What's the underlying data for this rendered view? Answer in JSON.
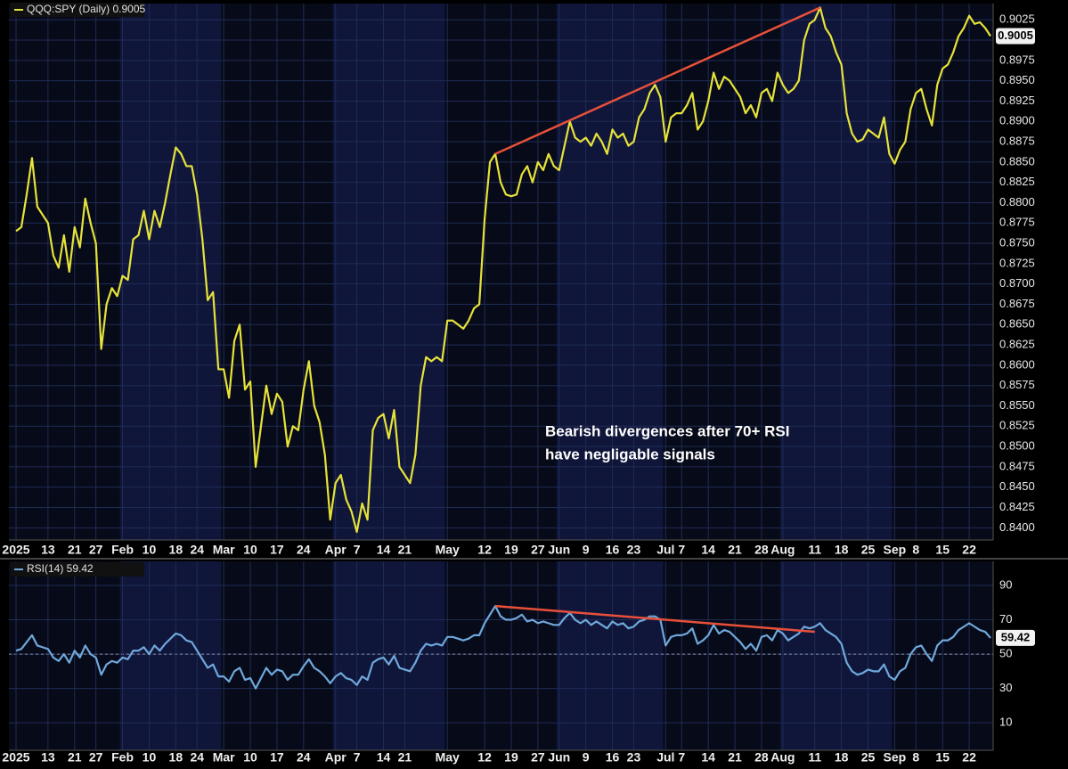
{
  "chart_data": [
    {
      "type": "line",
      "legend_label": "QQQ:SPY (Daily) 0.9005",
      "last_value_label": "0.9005",
      "annotation": [
        "Bearish divergences after 70+ RSI",
        "have negligable signals"
      ],
      "categories": [
        "2025",
        null,
        null,
        null,
        null,
        null,
        "13",
        null,
        null,
        null,
        null,
        "21",
        null,
        null,
        null,
        "27",
        null,
        null,
        null,
        null,
        "Feb",
        null,
        null,
        null,
        null,
        "10",
        null,
        null,
        null,
        null,
        "18",
        null,
        null,
        null,
        "24",
        null,
        null,
        null,
        null,
        "Mar",
        null,
        null,
        null,
        null,
        "10",
        null,
        null,
        null,
        null,
        "17",
        null,
        null,
        null,
        null,
        "24",
        null,
        null,
        null,
        null,
        null,
        "Apr",
        null,
        null,
        null,
        "7",
        null,
        null,
        null,
        null,
        "14",
        null,
        null,
        null,
        "21",
        null,
        null,
        null,
        null,
        null,
        null,
        null,
        "May",
        null,
        null,
        null,
        null,
        null,
        null,
        "12",
        null,
        null,
        null,
        null,
        "19",
        null,
        null,
        null,
        null,
        "27",
        null,
        null,
        null,
        "Jun",
        null,
        null,
        null,
        null,
        "9",
        null,
        null,
        null,
        null,
        "16",
        null,
        null,
        null,
        "23",
        null,
        null,
        null,
        null,
        null,
        "Jul",
        null,
        null,
        "7",
        null,
        null,
        null,
        null,
        "14",
        null,
        null,
        null,
        null,
        "21",
        null,
        null,
        null,
        null,
        "28",
        null,
        null,
        null,
        "Aug",
        null,
        null,
        null,
        null,
        null,
        "11",
        null,
        null,
        null,
        null,
        "18",
        null,
        null,
        null,
        null,
        "25",
        null,
        null,
        null,
        null,
        "Sep",
        null,
        null,
        null,
        "8",
        null,
        null,
        null,
        null,
        "15",
        null,
        null,
        null,
        null,
        "22",
        null,
        null,
        null,
        null
      ],
      "series": [
        {
          "name": "QQQ:SPY",
          "color": "#e6e23a",
          "values": [
            0.8765,
            0.877,
            0.881,
            0.8855,
            0.8795,
            0.8785,
            0.8775,
            0.8735,
            0.872,
            0.876,
            0.8715,
            0.877,
            0.8745,
            0.8805,
            0.8775,
            0.875,
            0.862,
            0.8675,
            0.8695,
            0.8685,
            0.871,
            0.8705,
            0.8755,
            0.876,
            0.879,
            0.8755,
            0.879,
            0.877,
            0.88,
            0.8835,
            0.8868,
            0.886,
            0.8845,
            0.8845,
            0.881,
            0.8755,
            0.868,
            0.869,
            0.8595,
            0.8595,
            0.856,
            0.863,
            0.865,
            0.857,
            0.858,
            0.8475,
            0.8525,
            0.8575,
            0.854,
            0.8565,
            0.8555,
            0.85,
            0.8525,
            0.852,
            0.857,
            0.8605,
            0.855,
            0.853,
            0.849,
            0.841,
            0.8455,
            0.8465,
            0.8435,
            0.842,
            0.8395,
            0.843,
            0.841,
            0.852,
            0.8535,
            0.854,
            0.851,
            0.8545,
            0.8475,
            0.8465,
            0.8455,
            0.849,
            0.8575,
            0.861,
            0.8605,
            0.861,
            0.8605,
            0.8655,
            0.8655,
            0.865,
            0.8645,
            0.8655,
            0.867,
            0.8675,
            0.878,
            0.885,
            0.886,
            0.8825,
            0.881,
            0.8808,
            0.881,
            0.8835,
            0.8845,
            0.8825,
            0.885,
            0.884,
            0.886,
            0.8845,
            0.884,
            0.887,
            0.89,
            0.888,
            0.8875,
            0.888,
            0.887,
            0.8885,
            0.8875,
            0.886,
            0.889,
            0.888,
            0.8885,
            0.887,
            0.8875,
            0.8905,
            0.8915,
            0.8935,
            0.8945,
            0.893,
            0.8875,
            0.8905,
            0.891,
            0.891,
            0.892,
            0.8935,
            0.889,
            0.89,
            0.8925,
            0.896,
            0.894,
            0.8955,
            0.895,
            0.894,
            0.893,
            0.891,
            0.892,
            0.8905,
            0.8935,
            0.894,
            0.8925,
            0.896,
            0.8945,
            0.8935,
            0.894,
            0.895,
            0.9,
            0.902,
            0.9025,
            0.904,
            0.9015,
            0.9005,
            0.8985,
            0.897,
            0.891,
            0.8885,
            0.8875,
            0.8878,
            0.889,
            0.8885,
            0.888,
            0.8905,
            0.886,
            0.8848,
            0.8865,
            0.8875,
            0.8915,
            0.8935,
            0.894,
            0.8915,
            0.8895,
            0.8945,
            0.8965,
            0.897,
            0.8985,
            0.9005,
            0.9015,
            0.903,
            0.902,
            0.9022,
            0.9015,
            0.9005
          ]
        }
      ],
      "trendline": {
        "from": [
          90,
          0.886
        ],
        "to": [
          151,
          0.904
        ],
        "color": "#e8503a"
      },
      "ylim": [
        0.8385,
        0.9045
      ],
      "yticks": [
        {
          "value": 0.84,
          "label": "0.8400"
        },
        {
          "value": 0.8425,
          "label": "0.8425"
        },
        {
          "value": 0.845,
          "label": "0.8450"
        },
        {
          "value": 0.8475,
          "label": "0.8475"
        },
        {
          "value": 0.85,
          "label": "0.8500"
        },
        {
          "value": 0.8525,
          "label": "0.8525"
        },
        {
          "value": 0.855,
          "label": "0.8550"
        },
        {
          "value": 0.8575,
          "label": "0.8575"
        },
        {
          "value": 0.86,
          "label": "0.8600"
        },
        {
          "value": 0.8625,
          "label": "0.8625"
        },
        {
          "value": 0.865,
          "label": "0.8650"
        },
        {
          "value": 0.8675,
          "label": "0.8675"
        },
        {
          "value": 0.87,
          "label": "0.8700"
        },
        {
          "value": 0.8725,
          "label": "0.8725"
        },
        {
          "value": 0.875,
          "label": "0.8750"
        },
        {
          "value": 0.8775,
          "label": "0.8775"
        },
        {
          "value": 0.88,
          "label": "0.8800"
        },
        {
          "value": 0.8825,
          "label": "0.8825"
        },
        {
          "value": 0.885,
          "label": "0.8850"
        },
        {
          "value": 0.8875,
          "label": "0.8875"
        },
        {
          "value": 0.89,
          "label": "0.8900"
        },
        {
          "value": 0.8925,
          "label": "0.8925"
        },
        {
          "value": 0.895,
          "label": "0.8950"
        },
        {
          "value": 0.8975,
          "label": "0.8975"
        },
        {
          "value": 0.9,
          "label": "0.9000"
        },
        {
          "value": 0.9025,
          "label": "0.9025"
        }
      ],
      "grid": true
    },
    {
      "type": "line",
      "legend_label": "RSI(14) 59.42",
      "last_value_label": "59.42",
      "categories": [
        "2025",
        null,
        null,
        null,
        null,
        null,
        "13",
        null,
        null,
        null,
        null,
        "21",
        null,
        null,
        null,
        "27",
        null,
        null,
        null,
        null,
        "Feb",
        null,
        null,
        null,
        null,
        "10",
        null,
        null,
        null,
        null,
        "18",
        null,
        null,
        null,
        "24",
        null,
        null,
        null,
        null,
        "Mar",
        null,
        null,
        null,
        null,
        "10",
        null,
        null,
        null,
        null,
        "17",
        null,
        null,
        null,
        null,
        "24",
        null,
        null,
        null,
        null,
        null,
        "Apr",
        null,
        null,
        null,
        "7",
        null,
        null,
        null,
        null,
        "14",
        null,
        null,
        null,
        "21",
        null,
        null,
        null,
        null,
        null,
        null,
        null,
        "May",
        null,
        null,
        null,
        null,
        null,
        null,
        "12",
        null,
        null,
        null,
        null,
        "19",
        null,
        null,
        null,
        null,
        "27",
        null,
        null,
        null,
        "Jun",
        null,
        null,
        null,
        null,
        "9",
        null,
        null,
        null,
        null,
        "16",
        null,
        null,
        null,
        "23",
        null,
        null,
        null,
        null,
        null,
        "Jul",
        null,
        null,
        "7",
        null,
        null,
        null,
        null,
        "14",
        null,
        null,
        null,
        null,
        "21",
        null,
        null,
        null,
        null,
        "28",
        null,
        null,
        null,
        "Aug",
        null,
        null,
        null,
        null,
        null,
        "11",
        null,
        null,
        null,
        null,
        "18",
        null,
        null,
        null,
        null,
        "25",
        null,
        null,
        null,
        null,
        "Sep",
        null,
        null,
        null,
        "8",
        null,
        null,
        null,
        null,
        "15",
        null,
        null,
        null,
        null,
        "22",
        null,
        null,
        null,
        null
      ],
      "series": [
        {
          "name": "RSI(14)",
          "color": "#6fa8dc",
          "values": [
            52,
            53,
            57,
            61,
            55,
            54,
            53,
            48,
            46,
            50,
            45,
            52,
            48,
            55,
            50,
            48,
            38,
            44,
            46,
            45,
            48,
            47,
            52,
            52,
            54,
            50,
            55,
            52,
            56,
            59,
            62,
            61,
            58,
            57,
            52,
            47,
            42,
            44,
            37,
            37,
            34,
            40,
            42,
            35,
            36,
            30,
            36,
            42,
            38,
            41,
            40,
            35,
            38,
            38,
            43,
            47,
            42,
            40,
            37,
            33,
            37,
            39,
            36,
            35,
            32,
            37,
            35,
            45,
            47,
            48,
            44,
            49,
            42,
            41,
            40,
            45,
            52,
            56,
            55,
            56,
            55,
            60,
            60,
            59,
            58,
            59,
            61,
            61,
            68,
            73,
            78,
            72,
            70,
            70,
            71,
            73,
            69,
            70,
            68,
            69,
            68,
            67,
            67,
            71,
            74,
            70,
            68,
            70,
            67,
            69,
            67,
            65,
            69,
            67,
            68,
            65,
            66,
            69,
            70,
            72,
            72,
            70,
            55,
            60,
            61,
            61,
            62,
            65,
            56,
            58,
            61,
            67,
            62,
            64,
            63,
            60,
            57,
            53,
            56,
            52,
            60,
            61,
            58,
            64,
            62,
            58,
            60,
            62,
            66,
            65,
            66,
            68,
            64,
            62,
            60,
            56,
            45,
            40,
            38,
            39,
            41,
            40,
            40,
            44,
            37,
            35,
            40,
            42,
            50,
            54,
            55,
            50,
            46,
            55,
            58,
            58,
            60,
            64,
            66,
            68,
            66,
            64,
            63,
            59.42
          ]
        }
      ],
      "trendline": {
        "from": [
          90,
          78
        ],
        "to": [
          150,
          63
        ],
        "color": "#e8503a"
      },
      "reference_line": 50,
      "ylim": [
        -6,
        104
      ],
      "yticks": [
        10,
        30,
        50,
        70,
        90
      ],
      "grid": true
    }
  ]
}
